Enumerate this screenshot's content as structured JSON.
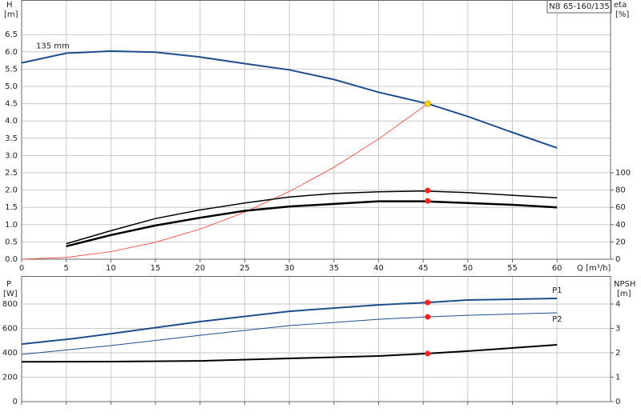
{
  "chart_data": [
    {
      "type": "line",
      "ylabel": "H",
      "yunit": "[m]",
      "y2label": "eta",
      "y2unit": "[%]",
      "xlabel": "Q [m³/h]",
      "box": "NB 65-160/135",
      "xlim": [
        0,
        66
      ],
      "xticks": [
        0,
        5,
        10,
        15,
        20,
        25,
        30,
        35,
        40,
        45,
        50,
        55,
        60
      ],
      "ylim": [
        0,
        7.5
      ],
      "yticks": [
        {
          "value": 0,
          "label": "0.0"
        },
        0.5,
        {
          "value": 1,
          "label": "1.0"
        },
        1.5,
        {
          "value": 2,
          "label": "2.0"
        },
        2.5,
        {
          "value": 3,
          "label": "3.0"
        },
        3.5,
        {
          "value": 4,
          "label": "4.0"
        },
        4.5,
        {
          "value": 5,
          "label": "5.0"
        },
        5.5,
        {
          "value": 6,
          "label": "6.0"
        },
        6.5
      ],
      "y2lim": [
        0,
        300
      ],
      "y2ticks": [
        0,
        20,
        40,
        60,
        80,
        100
      ],
      "grid": true,
      "series": [
        {
          "name": "135 mm",
          "label_at": "start",
          "color": "#1f4e8c",
          "width": 2,
          "x": [
            0,
            5,
            10,
            15,
            20,
            25,
            30,
            35,
            40,
            45.5,
            50,
            55,
            60
          ],
          "values": [
            5.68,
            5.96,
            6.02,
            5.99,
            5.85,
            5.66,
            5.48,
            5.2,
            4.83,
            4.5,
            4.13,
            3.67,
            3.22
          ]
        },
        {
          "color": "#ff3b30",
          "width": 0.8,
          "x": [
            0,
            5,
            10,
            15,
            20,
            25,
            30,
            35,
            40,
            45.5
          ],
          "values": [
            0,
            0.05,
            0.22,
            0.49,
            0.87,
            1.36,
            1.96,
            2.66,
            3.48,
            4.5
          ]
        },
        {
          "color": "#000000",
          "width": 1.5,
          "axis": "y2",
          "x": [
            5,
            10,
            15,
            20,
            25,
            30,
            35,
            40,
            45,
            50,
            55,
            60
          ],
          "values": [
            18,
            33,
            47,
            57,
            65,
            72,
            76,
            78,
            79,
            77,
            74,
            71
          ]
        },
        {
          "color": "#000000",
          "width": 2.5,
          "axis": "y2",
          "x": [
            5,
            10,
            15,
            20,
            25,
            30,
            35,
            40,
            45,
            50,
            55,
            60
          ],
          "values": [
            15,
            28,
            39,
            48,
            56,
            61,
            64,
            67,
            67,
            65,
            63,
            60
          ]
        },
        {
          "type": "scatter",
          "color": "#ffd700",
          "x": [
            45.5
          ],
          "values": [
            4.5
          ]
        },
        {
          "type": "scatter",
          "color": "#ff2020",
          "axis": "y2",
          "x": [
            45.5,
            45.5
          ],
          "values": [
            79.5,
            67.5
          ]
        }
      ]
    },
    {
      "type": "line",
      "ylabel": "P",
      "yunit": "[W]",
      "y2label": "NPSH",
      "y2unit": "[m]",
      "xlim": [
        0,
        66
      ],
      "xticks": [
        0,
        5,
        10,
        15,
        20,
        25,
        30,
        35,
        40,
        45,
        50,
        55,
        60
      ],
      "ylim": [
        0,
        1030
      ],
      "yticks": [
        0,
        200,
        400,
        600,
        800
      ],
      "y2lim": [
        0,
        5.15
      ],
      "y2ticks": [
        0,
        1,
        2,
        3,
        4
      ],
      "grid": true,
      "series": [
        {
          "name": "P1",
          "label_at": "end",
          "color": "#1f4e8c",
          "width": 2,
          "x": [
            0,
            6,
            10,
            20,
            30,
            40,
            45.5,
            50,
            60
          ],
          "values": [
            472,
            518,
            557,
            656,
            741,
            793,
            813,
            833,
            846
          ]
        },
        {
          "name": "P2",
          "label_at": "end",
          "color": "#1f4e8c",
          "width": 1,
          "x": [
            0,
            10,
            20,
            30,
            40,
            45.5,
            50,
            60
          ],
          "values": [
            387,
            459,
            544,
            623,
            675,
            695,
            708,
            728
          ]
        },
        {
          "color": "#000000",
          "width": 2,
          "axis": "y2",
          "x": [
            0,
            10,
            20,
            30,
            40,
            45.5,
            50,
            60
          ],
          "values": [
            1.63,
            1.64,
            1.67,
            1.77,
            1.87,
            1.97,
            2.07,
            2.33
          ]
        },
        {
          "type": "scatter",
          "color": "#ff2020",
          "x": [
            45.5,
            45.5
          ],
          "values": [
            813,
            695
          ]
        },
        {
          "type": "scatter",
          "color": "#ff2020",
          "axis": "y2",
          "x": [
            45.5
          ],
          "values": [
            1.97
          ]
        }
      ]
    }
  ]
}
